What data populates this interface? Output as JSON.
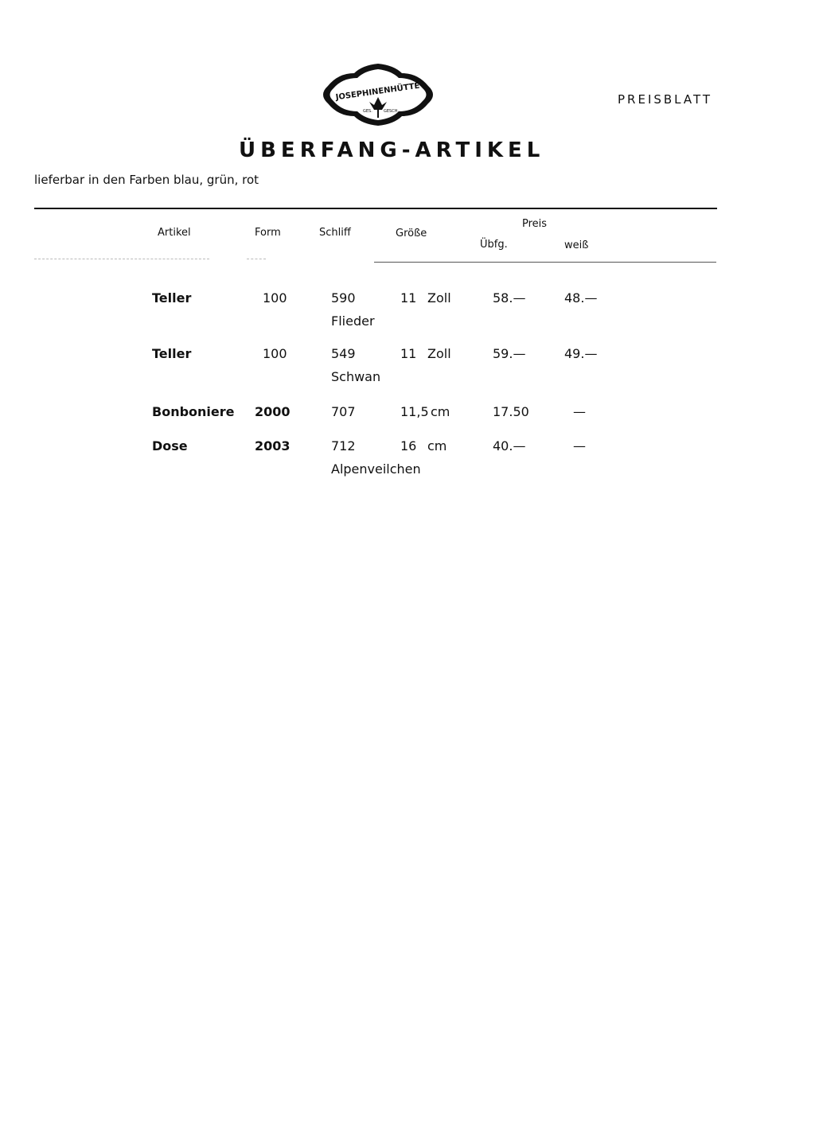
{
  "logo": {
    "text": "JOSEPHINENHÜTTE",
    "sub_left": "GES.",
    "sub_right": "GESCH."
  },
  "header": {
    "label": "PREISBLATT",
    "title": "ÜBERFANG-ARTIKEL",
    "subtitle": "lieferbar in den Farben blau, grün, rot"
  },
  "table": {
    "columns": {
      "artikel": "Artikel",
      "form": "Form",
      "schliff": "Schliff",
      "groesse": "Größe",
      "preis": "Preis",
      "ubfg": "Übfg.",
      "weiss": "weiß"
    },
    "rows": [
      {
        "artikel": "Teller",
        "form": "100",
        "schliff": "590",
        "schliff_name": "Flieder",
        "groesse_num": "11",
        "groesse_unit": "Zoll",
        "ubfg": "58.—",
        "weiss": "48.—"
      },
      {
        "artikel": "Teller",
        "form": "100",
        "schliff": "549",
        "schliff_name": "Schwan",
        "groesse_num": "11",
        "groesse_unit": "Zoll",
        "ubfg": "59.—",
        "weiss": "49.—"
      },
      {
        "artikel": "Bonboniere",
        "form": "2000",
        "schliff": "707",
        "schliff_name": "",
        "groesse_num": "11,5",
        "groesse_unit": "cm",
        "ubfg": "17.50",
        "weiss": "—"
      },
      {
        "artikel": "Dose",
        "form": "2003",
        "schliff": "712",
        "schliff_name": "Alpenveilchen",
        "groesse_num": "16",
        "groesse_unit": "cm",
        "ubfg": "40.—",
        "weiss": "—"
      }
    ]
  }
}
